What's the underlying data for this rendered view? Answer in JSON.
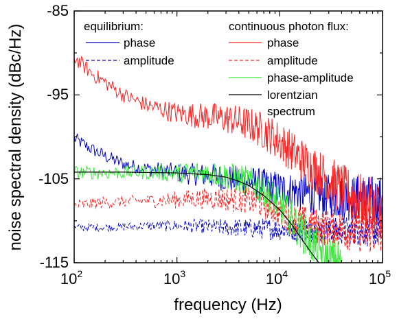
{
  "chart_data": {
    "type": "line",
    "xlabel": "frequency (Hz)",
    "ylabel": "noise spectral density (dBc/Hz)",
    "xscale": "log",
    "xlim": [
      100,
      100000
    ],
    "ylim": [
      -115,
      -85
    ],
    "yticks": [
      -115,
      -105,
      -95,
      -85
    ],
    "xticks": [
      {
        "value": 100,
        "base": "10",
        "exp": "2"
      },
      {
        "value": 1000,
        "base": "10",
        "exp": "3"
      },
      {
        "value": 10000,
        "base": "10",
        "exp": "4"
      },
      {
        "value": 100000,
        "base": "10",
        "exp": "5"
      }
    ],
    "grid": false,
    "legend": {
      "equilibrium_header": "equilibrium:",
      "continuous_header": "continuous photon flux:",
      "entries": {
        "eq_phase": "phase",
        "eq_amplitude": "amplitude",
        "cf_phase": "phase",
        "cf_amplitude": "amplitude",
        "cf_phase_amplitude": "phase-amplitude",
        "lorentzian_line1": "lorentzian",
        "lorentzian_line2": "spectrum"
      }
    },
    "series": [
      {
        "name": "phase",
        "group": "equilibrium",
        "color": "#0000cc",
        "style": "solid",
        "noise": 0.8,
        "x": [
          100,
          150,
          200,
          300,
          500,
          700,
          1000,
          2000,
          5000,
          10000,
          20000,
          50000,
          100000
        ],
        "y": [
          -100.2,
          -101.5,
          -102.3,
          -103.2,
          -103.8,
          -104.0,
          -104.3,
          -104.6,
          -105.3,
          -106.2,
          -106.8,
          -107.3,
          -107.7
        ]
      },
      {
        "name": "amplitude",
        "group": "equilibrium",
        "color": "#0000cc",
        "style": "dashed",
        "noise": 0.5,
        "x": [
          100,
          200,
          500,
          1000,
          2000,
          5000,
          10000,
          20000,
          50000,
          100000
        ],
        "y": [
          -110.8,
          -110.8,
          -110.6,
          -110.6,
          -110.7,
          -110.9,
          -111.0,
          -111.1,
          -111.2,
          -111.3
        ]
      },
      {
        "name": "phase",
        "group": "continuous photon flux",
        "color": "#ff2222",
        "style": "solid",
        "noise": 0.9,
        "x": [
          100,
          150,
          200,
          300,
          500,
          1000,
          2000,
          3000,
          5000,
          7000,
          10000,
          15000,
          20000,
          30000,
          50000,
          70000,
          100000
        ],
        "y": [
          -90.5,
          -92.5,
          -93.5,
          -95.0,
          -96.2,
          -97.2,
          -97.6,
          -97.8,
          -98.5,
          -99.3,
          -100.5,
          -102.3,
          -103.5,
          -105.2,
          -107.0,
          -108.0,
          -108.8
        ]
      },
      {
        "name": "amplitude",
        "group": "continuous photon flux",
        "color": "#ff2222",
        "style": "dashed",
        "noise": 0.7,
        "x": [
          100,
          200,
          500,
          1000,
          2000,
          5000,
          8000,
          10000,
          15000,
          20000,
          50000,
          100000
        ],
        "y": [
          -108.2,
          -107.8,
          -107.6,
          -107.5,
          -107.3,
          -107.6,
          -108.3,
          -109.0,
          -110.0,
          -110.5,
          -111.2,
          -111.5
        ]
      },
      {
        "name": "phase-amplitude",
        "group": "continuous photon flux",
        "color": "#33ee33",
        "style": "solid",
        "noise": 0.8,
        "x": [
          100,
          200,
          500,
          1000,
          1500,
          2000,
          3000,
          5000,
          7000,
          10000,
          15000,
          20000,
          30000,
          40000
        ],
        "y": [
          -104.2,
          -104.3,
          -104.2,
          -104.3,
          -104.2,
          -104.3,
          -104.6,
          -105.3,
          -106.3,
          -108.0,
          -110.8,
          -112.6,
          -114.5,
          -115.0
        ]
      },
      {
        "name": "lorentzian spectrum",
        "group": "continuous photon flux",
        "color": "#000000",
        "style": "solid",
        "noise": 0,
        "x": [
          100,
          300,
          1000,
          2000,
          3000,
          4000,
          5000,
          7000,
          10000,
          13000,
          16000,
          20000,
          24000
        ],
        "y": [
          -104.2,
          -104.2,
          -104.3,
          -104.5,
          -104.8,
          -105.3,
          -105.8,
          -107.0,
          -108.7,
          -110.4,
          -112.0,
          -113.7,
          -115.0
        ]
      }
    ]
  }
}
